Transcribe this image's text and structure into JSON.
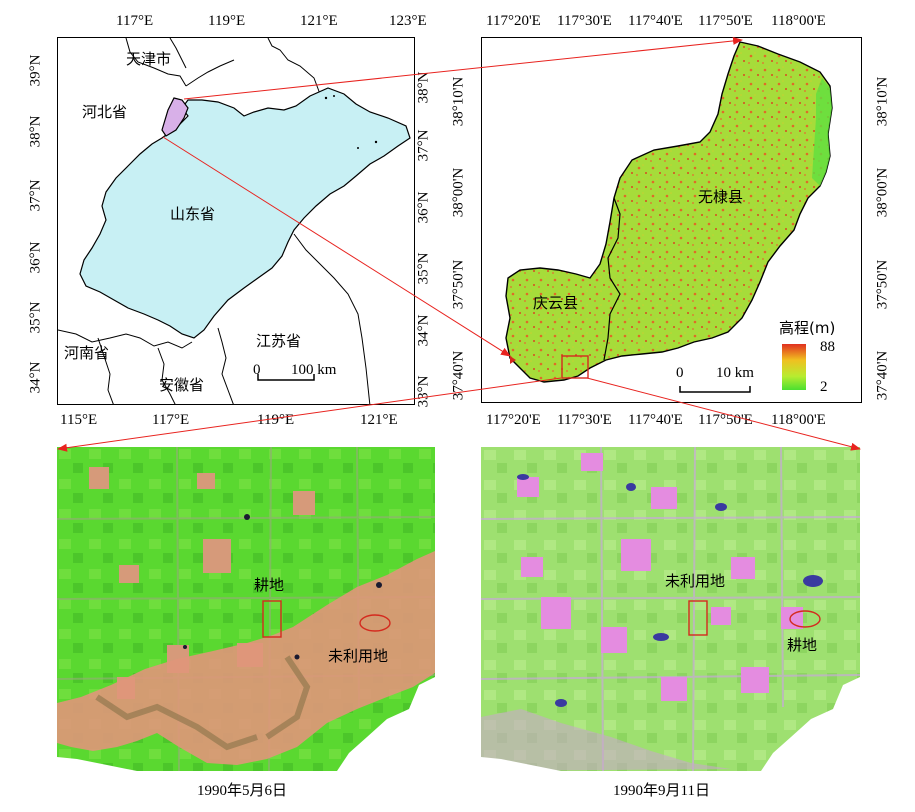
{
  "map_a": {
    "top_ticks": [
      "117°E",
      "119°E",
      "121°E",
      "123°E"
    ],
    "bottom_ticks": [
      "115°E",
      "117°E",
      "119°E",
      "121°E"
    ],
    "left_ticks": [
      "39°N",
      "38°N",
      "37°N",
      "36°N",
      "35°N",
      "34°N"
    ],
    "right_ticks": [
      "38°N",
      "37°N",
      "36°N",
      "35°N",
      "34°N",
      "33°N"
    ],
    "labels": {
      "tianjin": "天津市",
      "hebei": "河北省",
      "shandong": "山东省",
      "henan": "河南省",
      "jiangsu": "江苏省",
      "anhui": "安徽省"
    },
    "scale_zero": "0",
    "scale_label": "100 km",
    "colors": {
      "shandong_fill": "#c8f0f4",
      "study_area_fill": "#d8b0e8",
      "boundary": "#000000"
    }
  },
  "map_b": {
    "top_ticks": [
      "117°20'E",
      "117°30'E",
      "117°40'E",
      "117°50'E",
      "118°00'E"
    ],
    "bottom_ticks": [
      "117°20'E",
      "117°30'E",
      "117°40'E",
      "117°50'E",
      "118°00'E"
    ],
    "left_ticks": [
      "38°10'N",
      "38°00'N",
      "37°50'N",
      "37°40'N"
    ],
    "right_ticks": [
      "38°10'N",
      "38°00'N",
      "37°50'N",
      "37°40'N"
    ],
    "labels": {
      "wudi": "无棣县",
      "qingyun": "庆云县"
    },
    "legend": {
      "title": "高程(m)",
      "max": "88",
      "min": "2",
      "colors": [
        "#e03020",
        "#f0c020",
        "#b8ec30",
        "#4ae030"
      ]
    },
    "scale_zero": "0",
    "scale_label": "10 km"
  },
  "image_c": {
    "label_cultivated": "耕地",
    "label_unused": "未利用地",
    "date": "1990年5月6日"
  },
  "image_d": {
    "label_unused": "未利用地",
    "label_cultivated": "耕地",
    "date": "1990年9月11日"
  },
  "colors": {
    "connector": "#e8231f",
    "marker": "#d42a1e"
  }
}
